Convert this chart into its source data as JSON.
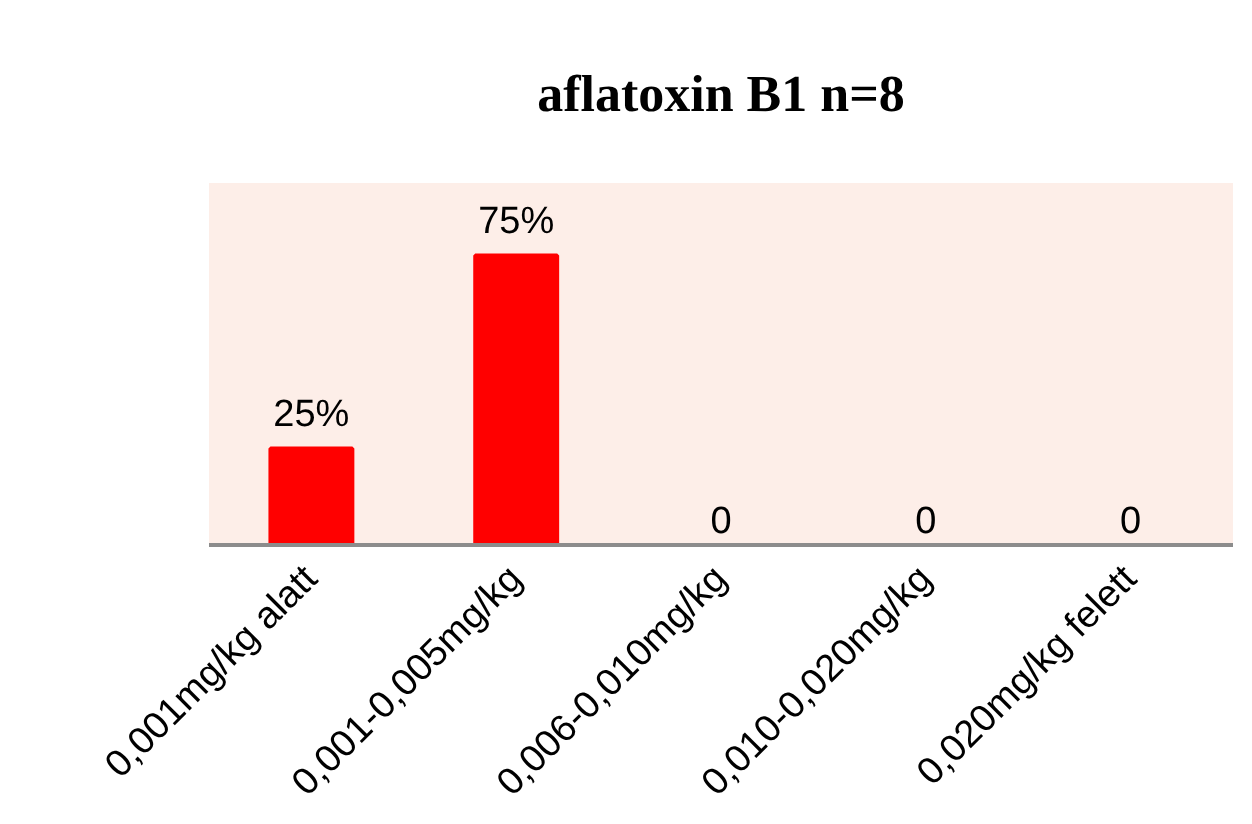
{
  "chart_data": {
    "type": "bar",
    "title": "aflatoxin B1 n=8",
    "categories": [
      "0,001mg/kg alatt",
      "0,001-0,005mg/kg",
      "0,006-0,010mg/kg",
      "0,010-0,020mg/kg",
      "0,020mg/kg felett"
    ],
    "values": [
      25,
      75,
      0,
      0,
      0
    ],
    "color": "#ff0000",
    "value_labels": [
      "25%",
      "75%",
      "0",
      "0",
      "0"
    ],
    "grid": false
  }
}
